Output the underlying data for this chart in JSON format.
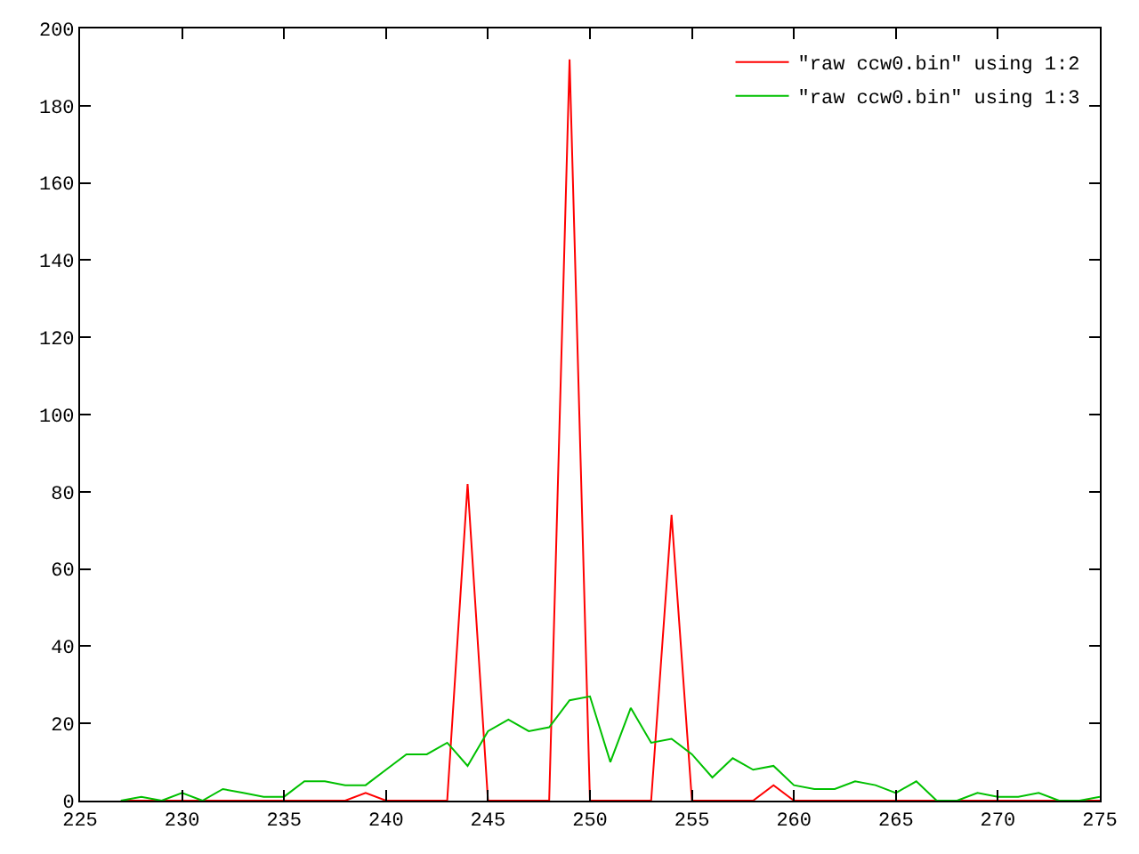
{
  "chart_data": {
    "type": "line",
    "x": [
      227,
      228,
      229,
      230,
      231,
      232,
      233,
      234,
      235,
      236,
      237,
      238,
      239,
      240,
      241,
      242,
      243,
      244,
      245,
      246,
      247,
      248,
      249,
      250,
      251,
      252,
      253,
      254,
      255,
      256,
      257,
      258,
      259,
      260,
      261,
      262,
      263,
      264,
      265,
      266,
      267,
      268,
      269,
      270,
      271,
      272,
      273,
      274,
      275
    ],
    "series": [
      {
        "name": "\"raw ccw0.bin\" using 1:2",
        "color": "#ff0000",
        "values": [
          0,
          0,
          0,
          0,
          0,
          0,
          0,
          0,
          0,
          0,
          0,
          0,
          2,
          0,
          0,
          0,
          0,
          82,
          0,
          0,
          0,
          0,
          192,
          0,
          0,
          0,
          0,
          74,
          0,
          0,
          0,
          0,
          4,
          0,
          0,
          0,
          0,
          0,
          0,
          0,
          0,
          0,
          0,
          0,
          0,
          0,
          0,
          0,
          0
        ]
      },
      {
        "name": "\"raw ccw0.bin\" using 1:3",
        "color": "#00c000",
        "values": [
          0,
          1,
          0,
          2,
          0,
          3,
          2,
          1,
          1,
          5,
          5,
          4,
          4,
          8,
          12,
          12,
          15,
          9,
          18,
          21,
          18,
          19,
          26,
          27,
          10,
          24,
          15,
          16,
          12,
          6,
          11,
          8,
          9,
          4,
          3,
          3,
          5,
          4,
          2,
          5,
          0,
          0,
          2,
          1,
          1,
          2,
          0,
          0,
          1
        ]
      }
    ],
    "xlim": [
      225,
      275
    ],
    "xticks": [
      225,
      230,
      235,
      240,
      245,
      250,
      255,
      260,
      265,
      270,
      275
    ],
    "ylim": [
      0,
      200
    ],
    "yticks": [
      0,
      20,
      40,
      60,
      80,
      100,
      120,
      140,
      160,
      180,
      200
    ],
    "grid": false,
    "legend": "top right",
    "marker": "none",
    "line_style": "solid"
  }
}
